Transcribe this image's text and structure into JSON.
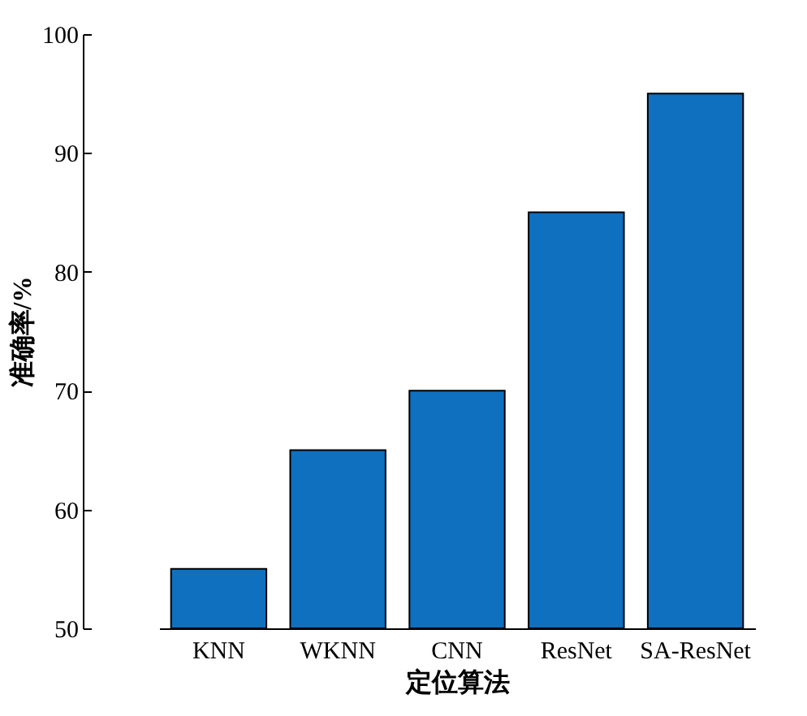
{
  "chart_data": {
    "type": "bar",
    "xlabel": "定位算法",
    "ylabel": "准确率/%",
    "categories": [
      "KNN",
      "WKNN",
      "CNN",
      "ResNet",
      "SA-ResNet"
    ],
    "values": [
      55,
      65,
      70,
      85,
      95
    ],
    "color": "#0e70be",
    "ylim": [
      50,
      100
    ],
    "yticks": [
      50,
      60,
      70,
      80,
      90,
      100
    ],
    "grid": false
  }
}
